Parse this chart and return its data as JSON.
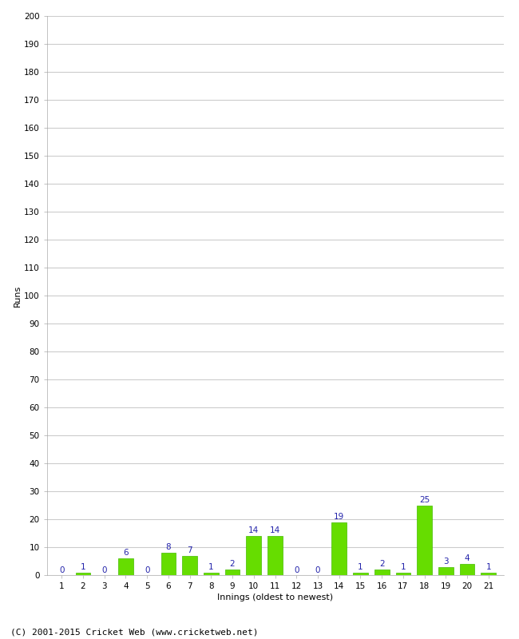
{
  "innings": [
    1,
    2,
    3,
    4,
    5,
    6,
    7,
    8,
    9,
    10,
    11,
    12,
    13,
    14,
    15,
    16,
    17,
    18,
    19,
    20,
    21
  ],
  "runs": [
    0,
    1,
    0,
    6,
    0,
    8,
    7,
    1,
    2,
    14,
    14,
    0,
    0,
    19,
    1,
    2,
    1,
    25,
    3,
    4,
    1
  ],
  "bar_color": "#66dd00",
  "bar_edge_color": "#44bb00",
  "label_color": "#2222aa",
  "ylabel": "Runs",
  "xlabel": "Innings (oldest to newest)",
  "ylim": [
    0,
    200
  ],
  "yticks": [
    0,
    10,
    20,
    30,
    40,
    50,
    60,
    70,
    80,
    90,
    100,
    110,
    120,
    130,
    140,
    150,
    160,
    170,
    180,
    190,
    200
  ],
  "grid_color": "#cccccc",
  "bg_color": "#ffffff",
  "footer": "(C) 2001-2015 Cricket Web (www.cricketweb.net)",
  "label_fontsize": 7.5,
  "tick_fontsize": 7.5,
  "axis_label_fontsize": 8,
  "footer_fontsize": 8
}
